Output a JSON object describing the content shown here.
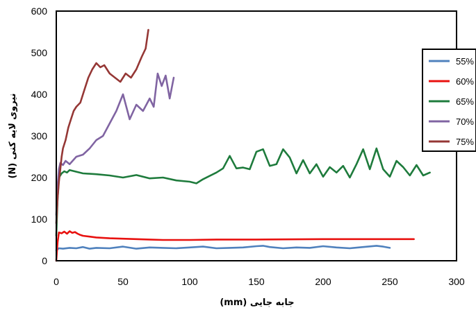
{
  "chart_data": {
    "type": "line",
    "xlabel": "جابه جایی (mm)",
    "ylabel": "نیروی لایه کنی (N)",
    "xlim": [
      0,
      300
    ],
    "ylim": [
      0,
      600
    ],
    "xticks": [
      0,
      50,
      100,
      150,
      200,
      250,
      300
    ],
    "yticks": [
      0,
      100,
      200,
      300,
      400,
      500,
      600
    ],
    "grid": false,
    "legend_position": "right",
    "series": [
      {
        "name": "55%",
        "color": "#4f81bd",
        "x": [
          0,
          2,
          5,
          10,
          15,
          20,
          25,
          30,
          40,
          50,
          60,
          70,
          80,
          90,
          100,
          110,
          120,
          130,
          140,
          150,
          155,
          160,
          170,
          180,
          190,
          200,
          210,
          220,
          230,
          240,
          245,
          250
        ],
        "y": [
          25,
          30,
          29,
          31,
          30,
          33,
          29,
          31,
          30,
          34,
          29,
          32,
          31,
          30,
          32,
          34,
          30,
          31,
          32,
          35,
          36,
          33,
          30,
          32,
          31,
          35,
          32,
          30,
          33,
          36,
          34,
          31
        ]
      },
      {
        "name": "60%",
        "color": "#e8110f",
        "x": [
          0,
          1,
          2,
          4,
          6,
          8,
          10,
          12,
          14,
          16,
          18,
          20,
          25,
          30,
          40,
          50,
          60,
          70,
          80,
          100,
          120,
          150,
          200,
          250,
          268
        ],
        "y": [
          0,
          45,
          68,
          66,
          70,
          65,
          71,
          67,
          69,
          65,
          62,
          60,
          58,
          56,
          54,
          53,
          52,
          51,
          50,
          50,
          51,
          51,
          52,
          52,
          52
        ]
      },
      {
        "name": "65%",
        "color": "#1e7b3c",
        "x": [
          0,
          1,
          2,
          4,
          6,
          8,
          10,
          15,
          20,
          30,
          40,
          50,
          60,
          70,
          80,
          90,
          100,
          105,
          110,
          120,
          125,
          130,
          135,
          140,
          145,
          150,
          155,
          160,
          165,
          170,
          175,
          180,
          185,
          190,
          195,
          200,
          205,
          210,
          215,
          220,
          225,
          230,
          235,
          240,
          245,
          250,
          255,
          260,
          265,
          270,
          275,
          280
        ],
        "y": [
          60,
          150,
          200,
          210,
          215,
          212,
          218,
          214,
          210,
          208,
          205,
          200,
          206,
          198,
          200,
          193,
          190,
          186,
          196,
          212,
          222,
          252,
          222,
          224,
          220,
          262,
          268,
          228,
          232,
          268,
          248,
          210,
          242,
          210,
          232,
          202,
          225,
          212,
          228,
          200,
          232,
          268,
          220,
          270,
          220,
          202,
          240,
          225,
          205,
          230,
          205,
          212
        ]
      },
      {
        "name": "70%",
        "color": "#8064a2",
        "x": [
          0,
          1,
          2,
          3,
          5,
          7,
          10,
          15,
          20,
          25,
          30,
          35,
          40,
          45,
          50,
          55,
          60,
          65,
          70,
          73,
          76,
          79,
          82,
          85,
          88
        ],
        "y": [
          110,
          180,
          220,
          235,
          230,
          240,
          232,
          250,
          255,
          270,
          290,
          300,
          330,
          360,
          400,
          340,
          375,
          360,
          390,
          370,
          450,
          420,
          445,
          390,
          440
        ]
      },
      {
        "name": "75%",
        "color": "#953735",
        "x": [
          0,
          1,
          2,
          3,
          4,
          5,
          7,
          9,
          11,
          13,
          15,
          18,
          21,
          24,
          27,
          30,
          33,
          36,
          40,
          44,
          48,
          52,
          56,
          60,
          64,
          67,
          69
        ],
        "y": [
          90,
          150,
          190,
          220,
          250,
          270,
          290,
          320,
          340,
          360,
          370,
          380,
          410,
          440,
          460,
          475,
          465,
          470,
          450,
          440,
          430,
          450,
          440,
          460,
          490,
          510,
          555
        ]
      }
    ]
  }
}
